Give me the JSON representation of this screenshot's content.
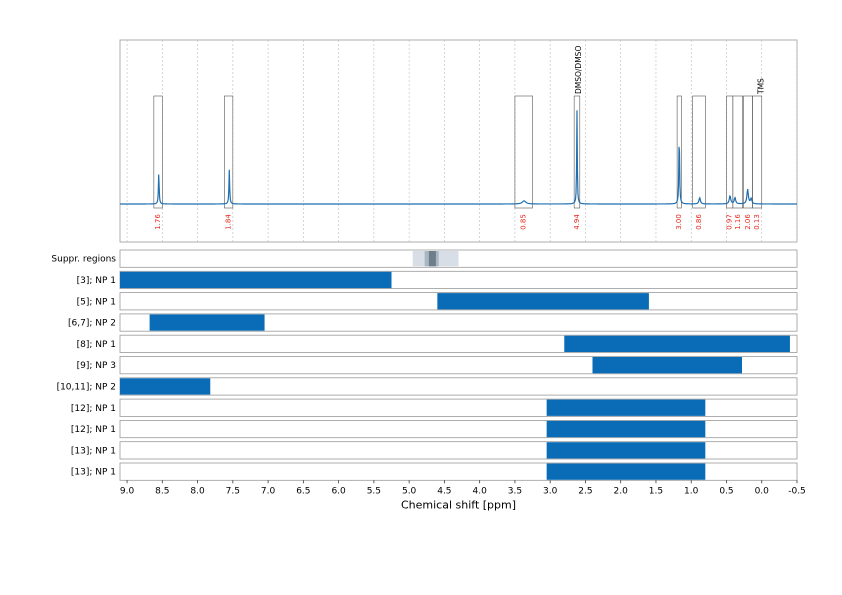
{
  "chart_data": {
    "type": "spectrum",
    "xlabel": "Chemical shift [ppm]",
    "xlim": [
      9.1,
      -0.5
    ],
    "x_ticks": [
      9.0,
      8.5,
      8.0,
      7.5,
      7.0,
      6.5,
      6.0,
      5.5,
      5.0,
      4.5,
      4.0,
      3.5,
      3.0,
      2.5,
      2.0,
      1.5,
      1.0,
      0.5,
      0.0,
      -0.5
    ],
    "x_tick_labels": [
      "9.0",
      "8.5",
      "8.0",
      "7.5",
      "7.0",
      "6.5",
      "6.0",
      "5.5",
      "5.0",
      "4.5",
      "4.0",
      "3.5",
      "3.0",
      "2.5",
      "2.0",
      "1.5",
      "1.0",
      "0.5",
      "0.0",
      "-0.5"
    ],
    "colors": {
      "spectrum": "#1f6fb0",
      "bar": "#0a6cb7",
      "integral": "#e8271d",
      "grid": "#bbbbbb",
      "suppr": "#d7dee6",
      "suppr_dark": "#6e7e8a"
    },
    "spectrum_peaks": [
      {
        "ppm": 8.55,
        "height": 0.3,
        "width": 0.006
      },
      {
        "ppm": 7.55,
        "height": 0.33,
        "width": 0.006
      },
      {
        "ppm": 3.37,
        "height": 0.03,
        "width": 0.03
      },
      {
        "ppm": 2.62,
        "height": 0.9,
        "width": 0.005
      },
      {
        "ppm": 1.17,
        "height": 0.7,
        "width": 0.006
      },
      {
        "ppm": 0.88,
        "height": 0.06,
        "width": 0.012
      },
      {
        "ppm": 0.45,
        "height": 0.08,
        "width": 0.012
      },
      {
        "ppm": 0.38,
        "height": 0.06,
        "width": 0.012
      },
      {
        "ppm": 0.2,
        "height": 0.14,
        "width": 0.012
      },
      {
        "ppm": 0.15,
        "height": 0.05,
        "width": 0.012
      }
    ],
    "integrals": [
      {
        "from": 8.62,
        "to": 8.5,
        "label": "1.76"
      },
      {
        "from": 7.62,
        "to": 7.5,
        "label": "1.84"
      },
      {
        "from": 3.5,
        "to": 3.25,
        "label": "0.85"
      },
      {
        "from": 2.66,
        "to": 2.58,
        "label": "4.94"
      },
      {
        "from": 1.2,
        "to": 1.14,
        "label": "3.00"
      },
      {
        "from": 0.98,
        "to": 0.8,
        "label": "0.86"
      },
      {
        "from": 0.5,
        "to": 0.41,
        "label": "0.97"
      },
      {
        "from": 0.41,
        "to": 0.27,
        "label": "1.16"
      },
      {
        "from": 0.26,
        "to": 0.13,
        "label": "2.06"
      },
      {
        "from": 0.13,
        "to": 0.0,
        "label": "0.13"
      }
    ],
    "peak_annotations": [
      {
        "ppm": 2.62,
        "label": "DMSO/DMSO"
      },
      {
        "ppm": 0.03,
        "label": "TMS"
      }
    ],
    "suppr": {
      "label": "Suppr. regions",
      "regions": [
        {
          "from": 4.95,
          "to": 4.3,
          "shade": "light"
        },
        {
          "from": 4.78,
          "to": 4.58,
          "shade": "mid"
        },
        {
          "from": 4.72,
          "to": 4.62,
          "shade": "dark"
        }
      ]
    },
    "rows": [
      {
        "label": "[3]; NP 1",
        "from": 9.1,
        "to": 5.25
      },
      {
        "label": "[5]; NP 1",
        "from": 4.6,
        "to": 1.6
      },
      {
        "label": "[6,7]; NP 2",
        "from": 8.68,
        "to": 7.05
      },
      {
        "label": "[8]; NP 1",
        "from": 2.8,
        "to": -0.4
      },
      {
        "label": "[9]; NP 3",
        "from": 2.4,
        "to": 0.28
      },
      {
        "label": "[10,11]; NP 2",
        "from": 9.1,
        "to": 7.82
      },
      {
        "label": "[12]; NP 1",
        "from": 3.05,
        "to": 0.8
      },
      {
        "label": "[12]; NP 1",
        "from": 3.05,
        "to": 0.8
      },
      {
        "label": "[13]; NP 1",
        "from": 3.05,
        "to": 0.8
      },
      {
        "label": "[13]; NP 1",
        "from": 3.05,
        "to": 0.8
      }
    ]
  }
}
